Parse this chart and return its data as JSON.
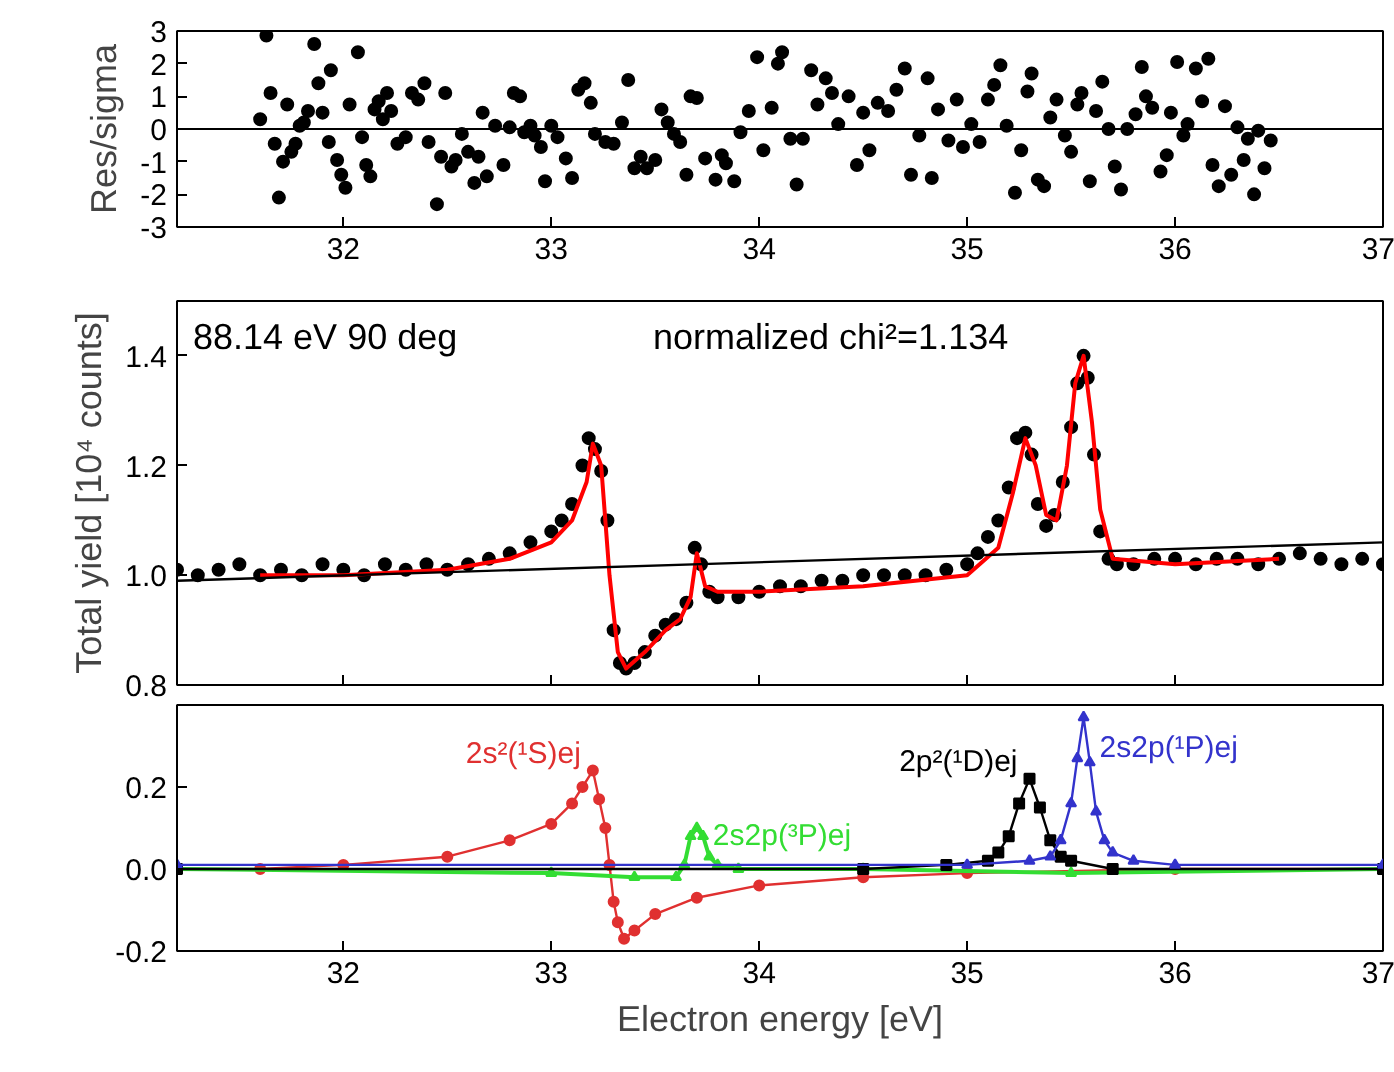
{
  "chart_data": [
    {
      "type": "scatter",
      "ylabel": "Res/sigma",
      "xlim": [
        31.2,
        37
      ],
      "xticks": [
        32,
        33,
        34,
        35,
        36,
        37
      ],
      "ylim": [
        -3,
        3
      ],
      "yticks": [
        -3,
        -2,
        -1,
        0,
        1,
        2,
        3
      ],
      "marker": "circle",
      "ref_lines": [
        {
          "axis": "y",
          "value": 0,
          "color": "#000000"
        }
      ],
      "series": [
        {
          "color": "#000000",
          "x": [
            31.6,
            31.63,
            31.65,
            31.67,
            31.69,
            31.71,
            31.73,
            31.75,
            31.77,
            31.79,
            31.81,
            31.83,
            31.86,
            31.88,
            31.9,
            31.93,
            31.94,
            31.97,
            31.99,
            32.01,
            32.03,
            32.07,
            32.09,
            32.11,
            32.13,
            32.15,
            32.17,
            32.19,
            32.21,
            32.23,
            32.26,
            32.3,
            32.33,
            32.36,
            32.39,
            32.41,
            32.45,
            32.47,
            32.49,
            32.52,
            32.54,
            32.57,
            32.6,
            32.63,
            32.65,
            32.67,
            32.69,
            32.73,
            32.77,
            32.8,
            32.82,
            32.85,
            32.87,
            32.9,
            32.92,
            32.95,
            32.97,
            33.0,
            33.03,
            33.07,
            33.1,
            33.13,
            33.16,
            33.19,
            33.21,
            33.26,
            33.3,
            33.34,
            33.37,
            33.4,
            33.43,
            33.46,
            33.5,
            33.53,
            33.56,
            33.59,
            33.62,
            33.65,
            33.67,
            33.7,
            33.74,
            33.79,
            33.82,
            33.84,
            33.88,
            33.91,
            33.95,
            33.99,
            34.02,
            34.06,
            34.09,
            34.11,
            34.15,
            34.18,
            34.21,
            34.25,
            34.28,
            34.32,
            34.35,
            34.38,
            34.43,
            34.47,
            34.5,
            34.53,
            34.57,
            34.62,
            34.66,
            34.7,
            34.73,
            34.77,
            34.81,
            34.83,
            34.86,
            34.91,
            34.95,
            34.98,
            35.02,
            35.06,
            35.1,
            35.13,
            35.16,
            35.19,
            35.23,
            35.26,
            35.29,
            35.31,
            35.34,
            35.37,
            35.4,
            35.43,
            35.47,
            35.5,
            35.53,
            35.55,
            35.59,
            35.62,
            35.65,
            35.68,
            35.71,
            35.74,
            35.77,
            35.81,
            35.84,
            35.86,
            35.89,
            35.93,
            35.96,
            35.98,
            36.01,
            36.04,
            36.06,
            36.1,
            36.13,
            36.16,
            36.18,
            36.21,
            36.24,
            36.27,
            36.3,
            36.33,
            36.35,
            36.38,
            36.4,
            36.43,
            36.46
          ],
          "values": [
            0.3,
            2.86,
            1.1,
            -0.45,
            -2.1,
            -1.0,
            0.75,
            -0.7,
            -0.45,
            0.1,
            0.2,
            0.55,
            2.6,
            1.4,
            0.5,
            -0.4,
            1.8,
            -0.95,
            -1.4,
            -1.8,
            0.75,
            2.35,
            -0.25,
            -1.1,
            -1.45,
            0.6,
            0.85,
            0.3,
            1.1,
            0.55,
            -0.45,
            -0.25,
            1.1,
            0.9,
            1.4,
            -0.4,
            -2.3,
            -0.85,
            1.1,
            -1.15,
            -0.95,
            -0.15,
            -0.7,
            -1.65,
            -0.85,
            0.5,
            -1.45,
            0.1,
            -1.1,
            0.05,
            1.1,
            1.0,
            -0.1,
            0.1,
            -0.2,
            -0.55,
            -1.6,
            0.1,
            -0.25,
            -0.9,
            -1.5,
            1.2,
            1.4,
            0.8,
            -0.15,
            -0.4,
            -0.45,
            0.2,
            1.5,
            -1.2,
            -0.85,
            -1.2,
            -0.95,
            0.6,
            0.2,
            -0.15,
            -0.4,
            -1.4,
            1.0,
            0.95,
            -0.9,
            -1.55,
            -0.8,
            -1.05,
            -1.6,
            -0.1,
            0.55,
            2.2,
            -0.65,
            0.65,
            2.0,
            2.35,
            -0.3,
            -1.7,
            -0.3,
            1.8,
            0.75,
            1.55,
            1.1,
            0.15,
            1.0,
            -1.1,
            0.5,
            -0.65,
            0.8,
            0.55,
            1.2,
            1.85,
            -1.4,
            -0.2,
            1.55,
            -1.5,
            0.6,
            -0.35,
            0.9,
            -0.55,
            0.15,
            -0.4,
            0.9,
            1.35,
            1.95,
            0.1,
            -1.95,
            -0.65,
            1.15,
            1.7,
            -1.55,
            -1.75,
            0.35,
            0.9,
            -0.2,
            -0.7,
            0.75,
            1.1,
            -1.6,
            0.55,
            1.45,
            0.0,
            -1.15,
            -1.85,
            0.0,
            0.45,
            1.9,
            1.0,
            0.65,
            -1.3,
            -0.8,
            0.5,
            2.05,
            -0.2,
            0.15,
            1.85,
            0.85,
            2.15,
            -1.1,
            -1.75,
            0.7,
            -1.4,
            0.05,
            -0.95,
            -0.3,
            -2.0,
            -0.05,
            -1.2,
            -0.35
          ]
        }
      ]
    },
    {
      "type": "scatter",
      "ylabel": "Total yield [10⁴ counts]",
      "xlim": [
        31.2,
        37
      ],
      "xticks": [
        32,
        33,
        34,
        35,
        36,
        37
      ],
      "ylim": [
        0.8,
        1.5
      ],
      "yticks": [
        {
          "value": 0.8,
          "label": "0.8"
        },
        {
          "value": 1.0,
          "label": "1.0"
        },
        {
          "value": 1.2,
          "label": "1.2"
        },
        {
          "value": 1.4,
          "label": "1.4"
        }
      ],
      "tick_labels": "y",
      "annotations": [
        "88.14 eV 90 deg",
        "normalized chi²=1.134"
      ],
      "series": [
        {
          "type": "scatter",
          "marker": "circle",
          "color": "#000000",
          "x": [
            31.2,
            31.3,
            31.4,
            31.5,
            31.6,
            31.7,
            31.8,
            31.9,
            32.0,
            32.1,
            32.2,
            32.3,
            32.4,
            32.5,
            32.6,
            32.7,
            32.8,
            32.9,
            33.0,
            33.05,
            33.1,
            33.15,
            33.18,
            33.21,
            33.24,
            33.27,
            33.3,
            33.33,
            33.36,
            33.4,
            33.45,
            33.5,
            33.55,
            33.6,
            33.65,
            33.69,
            33.72,
            33.76,
            33.8,
            33.9,
            34.0,
            34.1,
            34.2,
            34.3,
            34.4,
            34.5,
            34.6,
            34.7,
            34.8,
            34.9,
            35.0,
            35.05,
            35.1,
            35.15,
            35.2,
            35.24,
            35.28,
            35.31,
            35.34,
            35.38,
            35.42,
            35.46,
            35.5,
            35.53,
            35.56,
            35.58,
            35.61,
            35.64,
            35.68,
            35.72,
            35.8,
            35.9,
            36.0,
            36.1,
            36.2,
            36.3,
            36.4,
            36.5,
            36.6,
            36.7,
            36.8,
            36.9,
            37.0
          ],
          "values": [
            1.01,
            1.0,
            1.01,
            1.02,
            1.0,
            1.01,
            1.0,
            1.02,
            1.01,
            1.0,
            1.02,
            1.01,
            1.02,
            1.01,
            1.02,
            1.03,
            1.04,
            1.06,
            1.08,
            1.1,
            1.13,
            1.2,
            1.25,
            1.23,
            1.19,
            1.1,
            0.9,
            0.84,
            0.83,
            0.84,
            0.86,
            0.89,
            0.91,
            0.92,
            0.95,
            1.05,
            1.02,
            0.97,
            0.96,
            0.96,
            0.97,
            0.98,
            0.98,
            0.99,
            0.99,
            1.0,
            1.0,
            1.0,
            1.0,
            1.01,
            1.02,
            1.04,
            1.07,
            1.1,
            1.16,
            1.25,
            1.26,
            1.22,
            1.13,
            1.09,
            1.11,
            1.17,
            1.27,
            1.35,
            1.4,
            1.36,
            1.22,
            1.08,
            1.03,
            1.02,
            1.02,
            1.03,
            1.03,
            1.02,
            1.03,
            1.03,
            1.02,
            1.03,
            1.04,
            1.03,
            1.02,
            1.03,
            1.02
          ]
        },
        {
          "type": "line",
          "color": "#ff0000",
          "x": [
            31.6,
            32.0,
            32.5,
            32.8,
            33.0,
            33.1,
            33.17,
            33.2,
            33.24,
            33.28,
            33.32,
            33.36,
            33.45,
            33.55,
            33.62,
            33.67,
            33.7,
            33.74,
            33.8,
            34.0,
            34.5,
            35.0,
            35.15,
            35.22,
            35.28,
            35.33,
            35.38,
            35.43,
            35.48,
            35.52,
            35.56,
            35.6,
            35.64,
            35.7,
            36.0,
            36.5
          ],
          "values": [
            1.0,
            1.0,
            1.01,
            1.03,
            1.06,
            1.1,
            1.17,
            1.24,
            1.2,
            1.0,
            0.86,
            0.83,
            0.86,
            0.9,
            0.92,
            0.96,
            1.04,
            0.98,
            0.97,
            0.97,
            0.98,
            1.0,
            1.05,
            1.15,
            1.25,
            1.2,
            1.11,
            1.1,
            1.2,
            1.35,
            1.4,
            1.28,
            1.12,
            1.03,
            1.02,
            1.03
          ]
        },
        {
          "type": "line",
          "color": "#000000",
          "x": [
            31.2,
            37.0
          ],
          "values": [
            0.99,
            1.06
          ]
        }
      ]
    },
    {
      "type": "line",
      "xlabel": "Electron energy [eV]",
      "xlim": [
        31.2,
        37
      ],
      "xticks": [
        32,
        33,
        34,
        35,
        36,
        37
      ],
      "ylim": [
        -0.2,
        0.4
      ],
      "yticks": [
        {
          "value": -0.2,
          "label": "-0.2"
        },
        {
          "value": 0.0,
          "label": "0.0"
        },
        {
          "value": 0.2,
          "label": "0.2"
        }
      ],
      "series": [
        {
          "name": "2s²(¹S)ej",
          "color": "#e03030",
          "marker": "circle",
          "x": [
            31.6,
            32.0,
            32.5,
            32.8,
            33.0,
            33.1,
            33.15,
            33.2,
            33.23,
            33.26,
            33.28,
            33.3,
            33.32,
            33.35,
            33.4,
            33.5,
            33.7,
            34.0,
            34.5,
            35.0,
            36.0,
            37.0
          ],
          "values": [
            0.0,
            0.01,
            0.03,
            0.07,
            0.11,
            0.16,
            0.2,
            0.24,
            0.17,
            0.1,
            0.01,
            -0.08,
            -0.13,
            -0.17,
            -0.15,
            -0.11,
            -0.07,
            -0.04,
            -0.02,
            -0.01,
            0.0,
            0.0
          ]
        },
        {
          "name": "2s2p(³P)ej",
          "color": "#33dd33",
          "marker": "triangle",
          "x": [
            31.2,
            33.0,
            33.4,
            33.6,
            33.64,
            33.67,
            33.7,
            33.73,
            33.76,
            33.8,
            33.9,
            34.5,
            35.5,
            37.0
          ],
          "values": [
            0.0,
            -0.01,
            -0.02,
            -0.02,
            0.01,
            0.08,
            0.1,
            0.08,
            0.03,
            0.01,
            0.0,
            0.0,
            -0.01,
            0.0
          ]
        },
        {
          "name": "2p²(¹D)ej",
          "color": "#000000",
          "marker": "square",
          "x": [
            31.2,
            34.5,
            34.9,
            35.1,
            35.15,
            35.2,
            35.25,
            35.3,
            35.35,
            35.4,
            35.45,
            35.5,
            35.7,
            37.0
          ],
          "values": [
            0.0,
            0.0,
            0.01,
            0.02,
            0.04,
            0.08,
            0.16,
            0.22,
            0.15,
            0.07,
            0.03,
            0.02,
            0.0,
            0.0
          ]
        },
        {
          "name": "2s2p(¹P)ej",
          "color": "#3333cc",
          "marker": "triangle",
          "x": [
            31.2,
            35.0,
            35.3,
            35.4,
            35.45,
            35.5,
            35.53,
            35.56,
            35.59,
            35.62,
            35.66,
            35.7,
            35.8,
            36.0,
            37.0
          ],
          "values": [
            0.01,
            0.01,
            0.02,
            0.03,
            0.07,
            0.16,
            0.27,
            0.37,
            0.26,
            0.14,
            0.07,
            0.04,
            0.02,
            0.01,
            0.01
          ]
        }
      ]
    }
  ]
}
